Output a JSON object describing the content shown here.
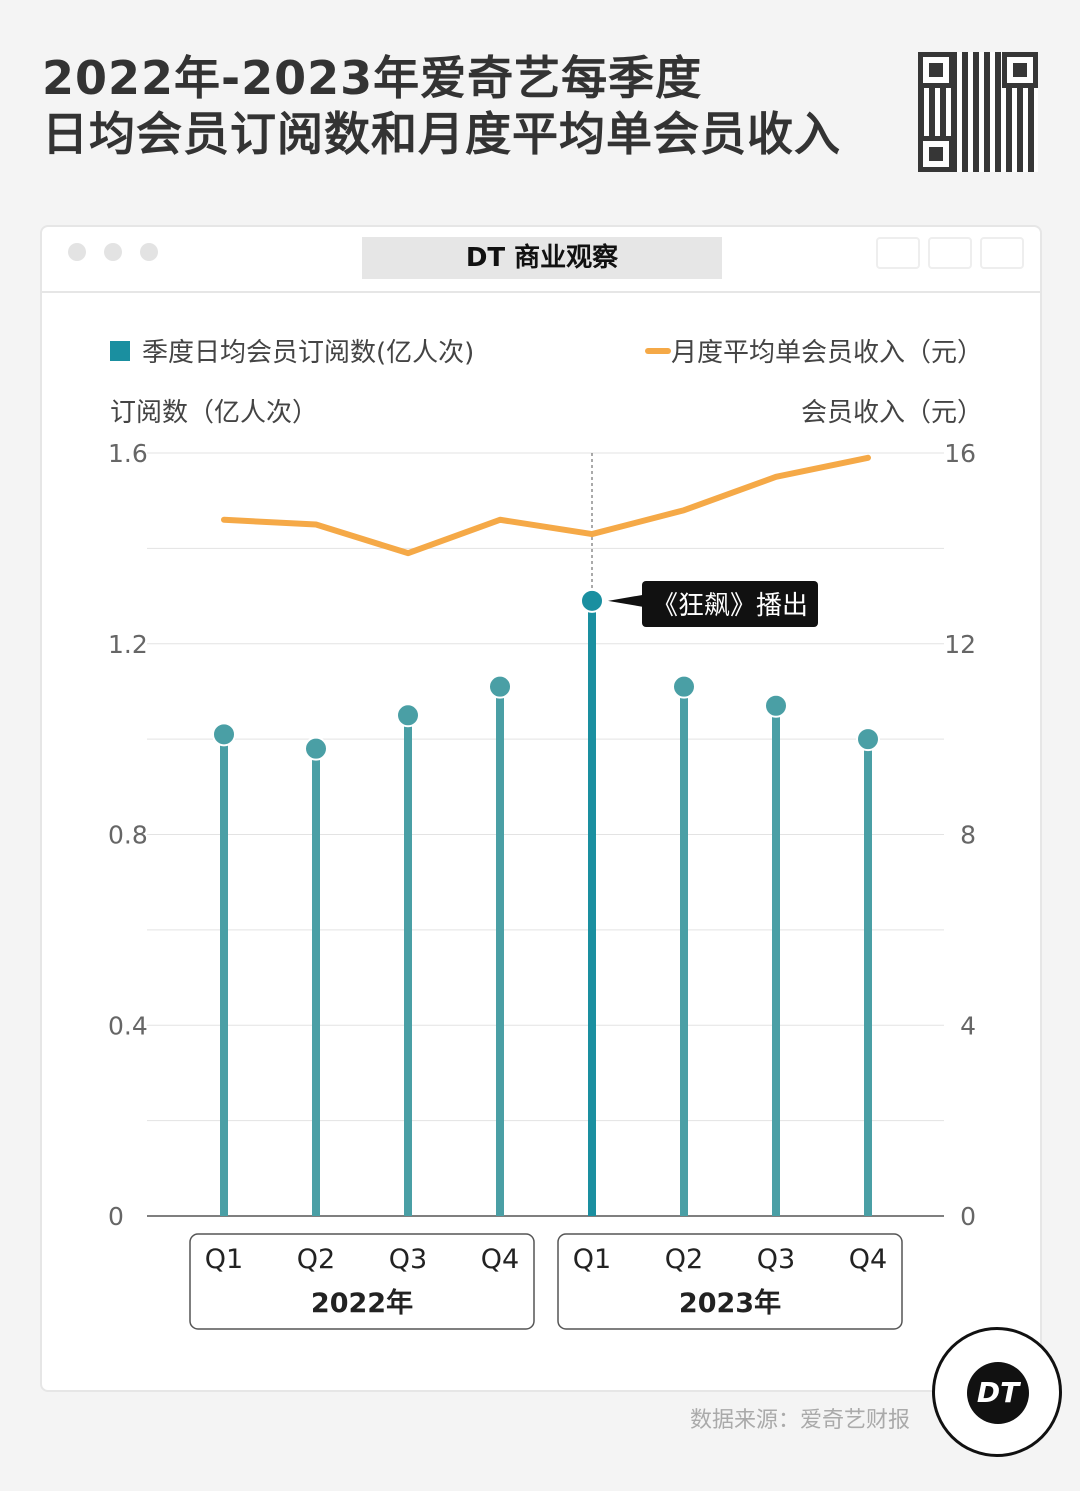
{
  "title": {
    "line1": "2022年-2023年爱奇艺每季度",
    "line2": "日均会员订阅数和月度平均单会员收入"
  },
  "window": {
    "title": "DT 商业观察"
  },
  "source": "数据来源：爱奇艺财报",
  "logo": "DT",
  "colors": {
    "bar": "#4a9fa5",
    "bar_highlight": "#1a8fa0",
    "line": "#f5a947",
    "grid": "#e3e3e3"
  },
  "chart_data": {
    "type": "bar+line",
    "title": "2022年-2023年爱奇艺每季度日均会员订阅数和月度平均单会员收入",
    "categories": [
      "Q1",
      "Q2",
      "Q3",
      "Q4",
      "Q1",
      "Q2",
      "Q3",
      "Q4"
    ],
    "groups": [
      {
        "label": "2022年",
        "count": 4
      },
      {
        "label": "2023年",
        "count": 4
      }
    ],
    "series": [
      {
        "name": "季度日均会员订阅数(亿人次)",
        "type": "lollipop",
        "axis": "left",
        "values": [
          1.01,
          0.98,
          1.05,
          1.11,
          1.29,
          1.11,
          1.07,
          1.0
        ]
      },
      {
        "name": "月度平均单会员收入（元）",
        "type": "line",
        "axis": "right",
        "values": [
          14.6,
          14.5,
          13.9,
          14.6,
          14.3,
          14.8,
          15.5,
          15.9
        ]
      }
    ],
    "ylabel": "订阅数（亿人次）",
    "y2label": "会员收入（元）",
    "ylim": [
      0,
      1.6
    ],
    "yticks": [
      "0",
      "0.4",
      "0.8",
      "1.2",
      "1.6"
    ],
    "y2lim": [
      0,
      16
    ],
    "y2ticks": [
      "0",
      "4",
      "8",
      "12",
      "16"
    ],
    "annotation": {
      "index": 4,
      "text": "《狂飙》播出"
    },
    "legend": "top",
    "grid": true
  }
}
